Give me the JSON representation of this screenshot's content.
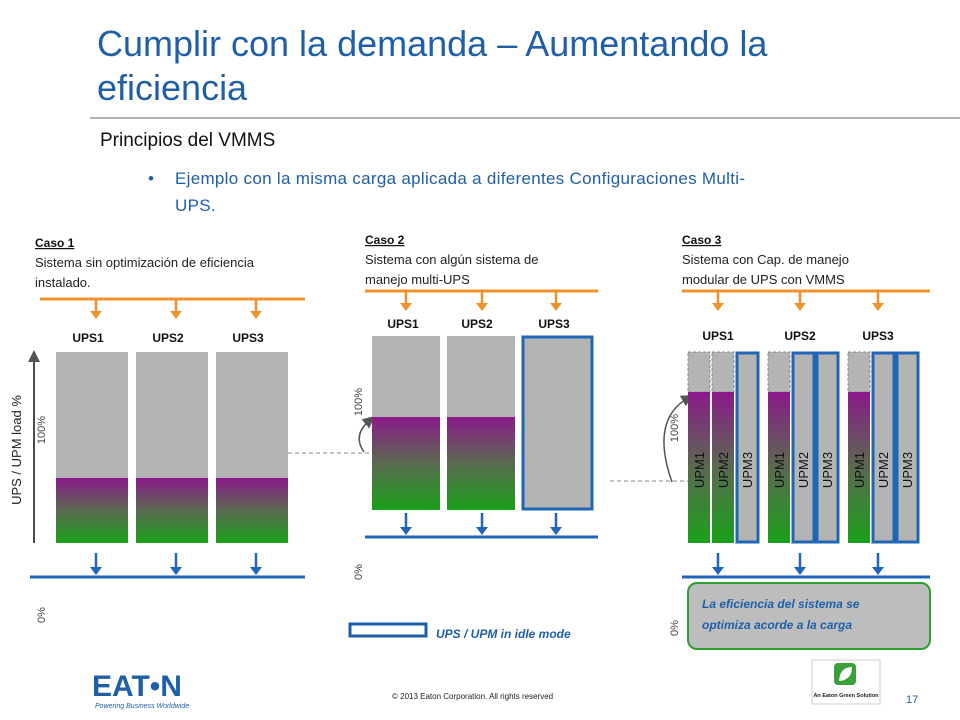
{
  "header": {
    "title_lines": [
      "Cumplir con la demanda – Aumentando la",
      "eficiencia"
    ],
    "subtitle": "Principios del VMMS",
    "bullet_lines": [
      "Ejemplo con la misma carga aplicada a diferentes Configuraciones Multi-",
      "UPS."
    ]
  },
  "cases": [
    {
      "heading": "Caso 1",
      "description_lines": [
        "Sistema sin  optimización de eficiencia",
        "instalado."
      ],
      "units": [
        "UPS1",
        "UPS2",
        "UPS3"
      ]
    },
    {
      "heading": "Caso 2",
      "description_lines": [
        "Sistema con algún sistema de",
        "manejo  multi-UPS"
      ],
      "units": [
        "UPS1",
        "UPS2",
        "UPS3"
      ]
    },
    {
      "heading": "Caso 3",
      "description_lines": [
        "Sistema con Cap. de manejo",
        "modular de  UPS con  VMMS"
      ],
      "units": [
        "UPS1",
        "UPS2",
        "UPS3"
      ]
    }
  ],
  "axis": {
    "label": "UPS / UPM load %",
    "max": "100%",
    "min": "0%"
  },
  "modules": [
    "UPM1",
    "UPM2",
    "UPM3"
  ],
  "legend": "UPS / UPM in idle mode",
  "callout_lines": [
    "La eficiencia del sistema se",
    "optimiza acorde a la carga"
  ],
  "footer": {
    "brand": "EAT•N",
    "tagline": "Powering Business Worldwide",
    "copyright": "© 2013 Eaton Corporation. All rights reserved",
    "page": "17",
    "badge": "An Eaton Green Solution"
  }
}
